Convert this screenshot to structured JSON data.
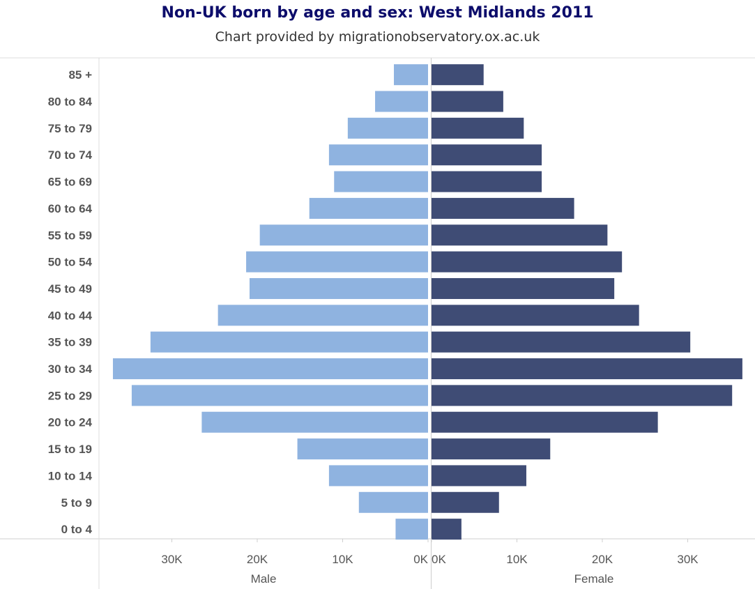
{
  "chart_data": {
    "type": "bar",
    "title": "Non-UK born by age and sex: West Midlands 2011",
    "subtitle": "Chart provided by migrationobservatory.ox.ac.uk",
    "categories": [
      "85 +",
      "80 to 84",
      "75 to 79",
      "70 to 74",
      "65 to 69",
      "60 to 64",
      "55 to 59",
      "50 to 54",
      "45 to 49",
      "40 to 44",
      "35 to 39",
      "30 to 34",
      "25 to 29",
      "20 to 24",
      "15 to 19",
      "10 to 14",
      "5 to 9",
      "0 to 4"
    ],
    "series": [
      {
        "name": "Male",
        "color": "#8fb3e0",
        "values": [
          4000,
          6200,
          9400,
          11600,
          11000,
          13900,
          19700,
          21300,
          20900,
          24600,
          32500,
          36900,
          34700,
          26500,
          15300,
          11600,
          8100,
          3800
        ]
      },
      {
        "name": "Female",
        "color": "#3f4c75",
        "values": [
          6100,
          8400,
          10800,
          12900,
          12900,
          16700,
          20600,
          22300,
          21400,
          24300,
          30300,
          36400,
          35200,
          26500,
          13900,
          11100,
          7900,
          3500
        ]
      }
    ],
    "xticks": {
      "male": [
        {
          "value": 30000,
          "label": "30K"
        },
        {
          "value": 20000,
          "label": "20K"
        },
        {
          "value": 10000,
          "label": "10K"
        },
        {
          "value": 0,
          "label": "0K"
        }
      ],
      "female": [
        {
          "value": 0,
          "label": "0K"
        },
        {
          "value": 10000,
          "label": "10K"
        },
        {
          "value": 20000,
          "label": "20K"
        },
        {
          "value": 30000,
          "label": "30K"
        }
      ]
    },
    "xlim": [
      0,
      37000
    ],
    "grid": false,
    "legend": "none"
  }
}
